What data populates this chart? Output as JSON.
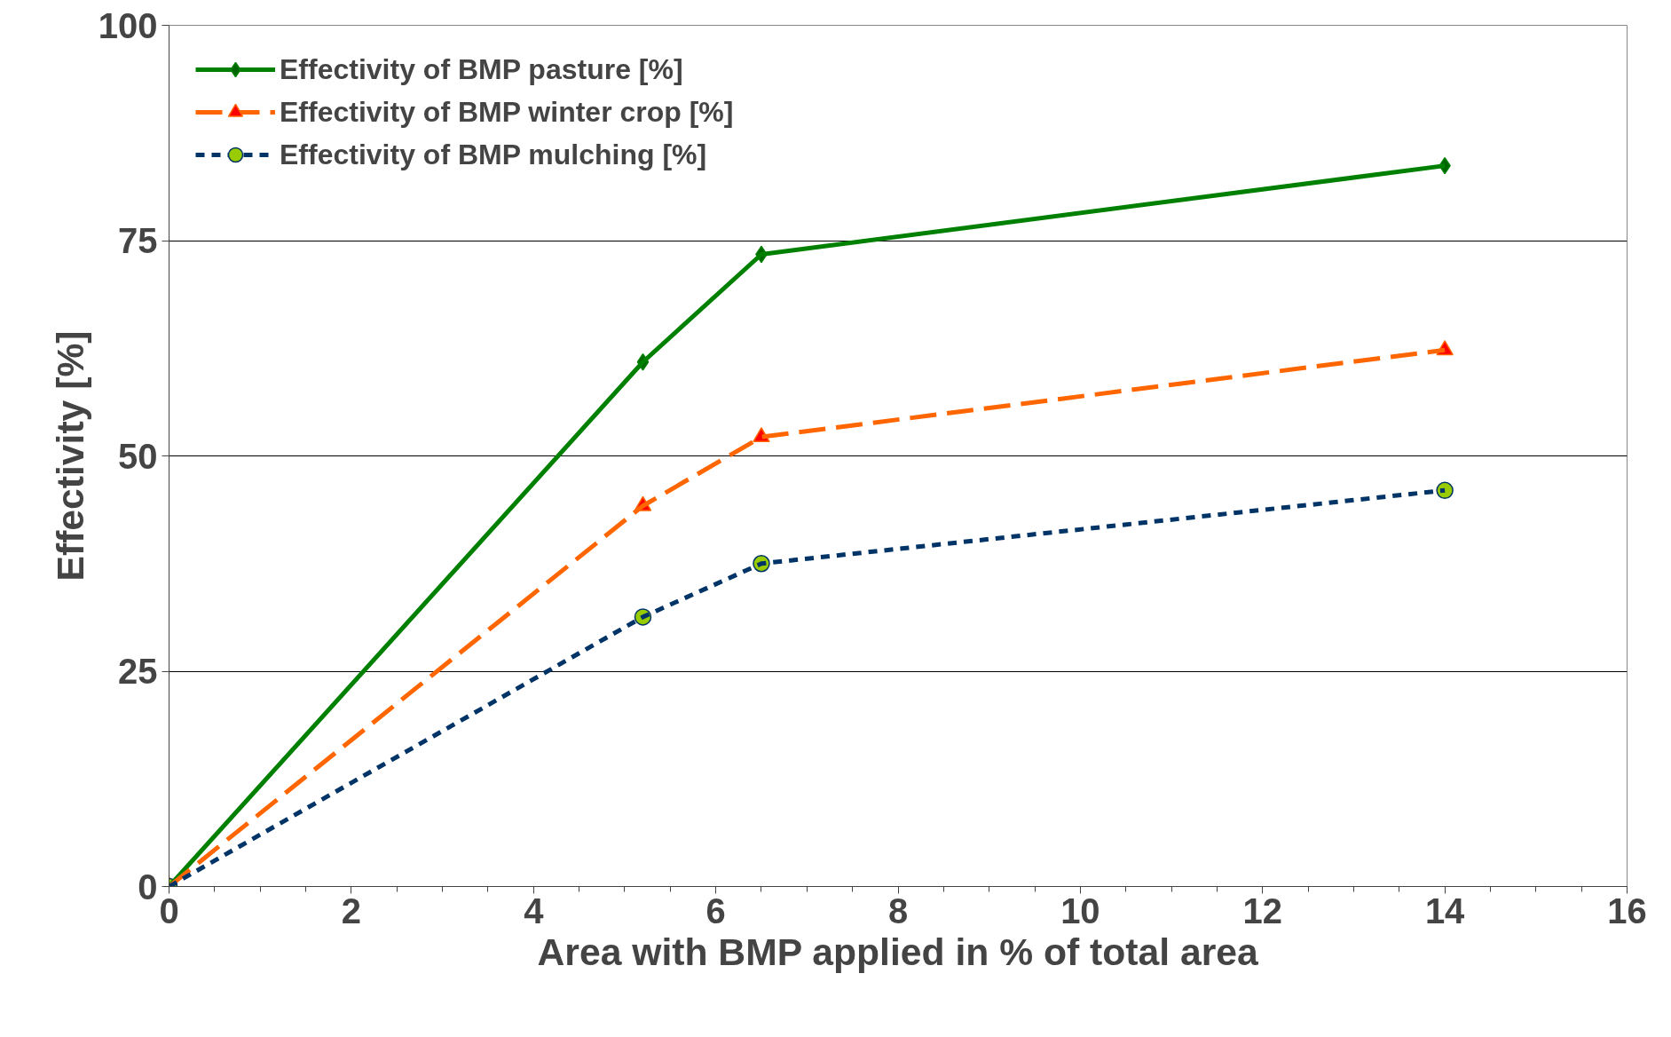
{
  "chart_data": {
    "type": "line",
    "xlabel": "Area with BMP applied in % of total area",
    "ylabel": "Effectivity [%]",
    "xlim": [
      0,
      16
    ],
    "xticks": [
      0,
      2,
      4,
      6,
      8,
      10,
      12,
      14,
      16
    ],
    "ylim": [
      0,
      100
    ],
    "yticks": [
      0,
      25,
      50,
      75,
      100
    ],
    "grid": "y",
    "legend": "top left",
    "series": [
      {
        "name": "Effectivity of BMP pasture [%]",
        "color": "#008000",
        "colors": [
          "#006400",
          "#006400",
          "#006400",
          "#006400"
        ],
        "marker": "diamond",
        "line_style": "solid",
        "x": [
          0,
          5.2,
          6.5,
          14
        ],
        "values": [
          0,
          60.9,
          73.4,
          83.7
        ]
      },
      {
        "name": "Effectivity of BMP winter crop [%]",
        "color": "#ff6600",
        "colors": [
          "#ff0000",
          "#ff0000",
          "#ff0000",
          "#ff0000"
        ],
        "marker": "triangle",
        "line_style": "dashed",
        "x": [
          0,
          5.2,
          6.5,
          14
        ],
        "values": [
          0,
          44.2,
          52.2,
          62.3
        ]
      },
      {
        "name": "Effectivity of BMP mulching [%]",
        "color": "#003366",
        "colors": [
          "#99cc00",
          "#99cc00",
          "#99cc00",
          "#99cc00"
        ],
        "marker": "circle",
        "line_style": "dotted",
        "x": [
          0,
          5.2,
          6.5,
          14
        ],
        "values": [
          0,
          31.3,
          37.5,
          46.0
        ]
      }
    ]
  }
}
